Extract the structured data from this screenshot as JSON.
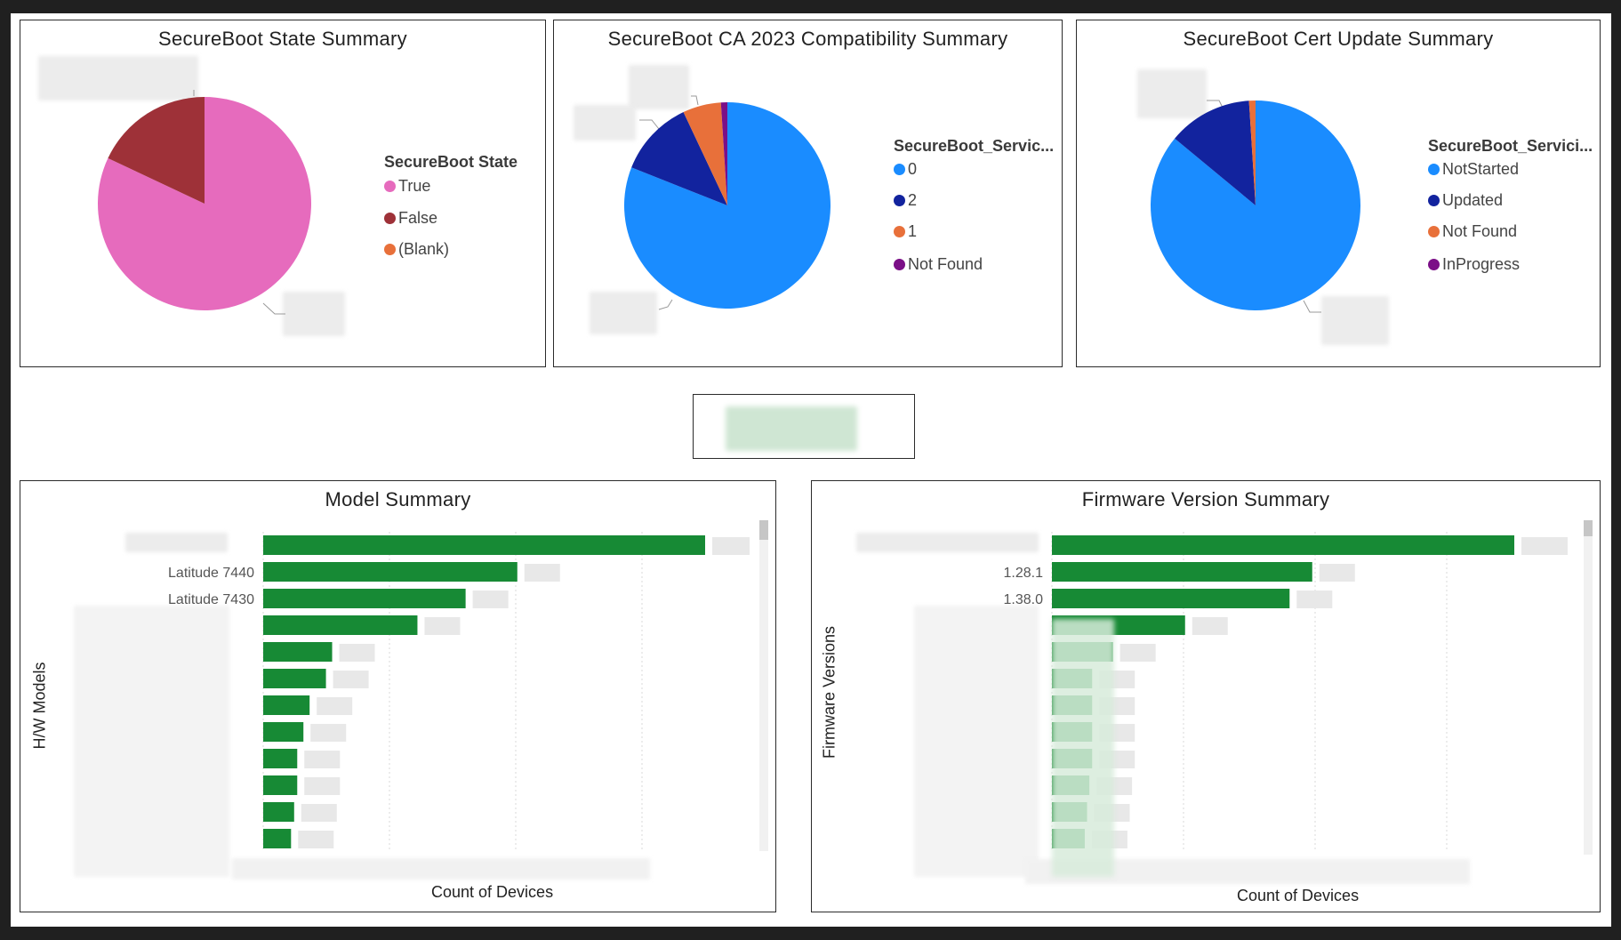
{
  "colors": {
    "pink": "#e66bbd",
    "darkred": "#9e3138",
    "orange": "#e8703a",
    "blue": "#1a8cff",
    "navy": "#12239e",
    "purple": "#7b0f87",
    "green": "#178a35"
  },
  "legend1": {
    "title": "SecureBoot State",
    "items": [
      "True",
      "False",
      "(Blank)"
    ]
  },
  "legend2": {
    "title": "SecureBoot_Servic...",
    "items": [
      "0",
      "2",
      "1",
      "Not Found"
    ]
  },
  "legend3": {
    "title": "SecureBoot_Servici...",
    "items": [
      "NotStarted",
      "Updated",
      "Not Found",
      "InProgress"
    ]
  },
  "bar_axes": {
    "model_ylabel": "H/W Models",
    "firmware_ylabel": "Firmware Versions",
    "model_xlabel": "Count of Devices",
    "firmware_xlabel": "Count of Devices"
  },
  "chart_data": [
    {
      "type": "pie",
      "title": "SecureBoot State Summary",
      "legend_title": "SecureBoot State",
      "legend_position": "right",
      "categories": [
        "True",
        "False",
        "(Blank)"
      ],
      "values": [
        82,
        18,
        0
      ],
      "colors": [
        "#e66bbd",
        "#9e3138",
        "#e8703a"
      ]
    },
    {
      "type": "pie",
      "title": "SecureBoot CA 2023 Compatibility Summary",
      "legend_title": "SecureBoot_Servic...",
      "legend_position": "right",
      "categories": [
        "0",
        "2",
        "1",
        "Not Found"
      ],
      "values": [
        81,
        12,
        6,
        1
      ],
      "colors": [
        "#1a8cff",
        "#12239e",
        "#e8703a",
        "#7b0f87"
      ]
    },
    {
      "type": "pie",
      "title": "SecureBoot Cert Update Summary",
      "legend_title": "SecureBoot_Servici...",
      "legend_position": "right",
      "categories": [
        "NotStarted",
        "Updated",
        "Not Found",
        "InProgress"
      ],
      "values": [
        86,
        13,
        1,
        0
      ],
      "colors": [
        "#1a8cff",
        "#12239e",
        "#e8703a",
        "#7b0f87"
      ]
    },
    {
      "type": "bar",
      "orientation": "horizontal",
      "title": "Model Summary",
      "xlabel": "Count of Devices",
      "ylabel": "H/W Models",
      "categories": [
        "",
        "Latitude 7440",
        "Latitude 7430",
        "",
        "",
        "",
        "",
        "",
        "",
        "",
        "",
        ""
      ],
      "values": [
        100,
        57.5,
        45.8,
        34.9,
        15.6,
        14.2,
        10.5,
        9.1,
        7.7,
        7.7,
        7.0,
        6.3
      ],
      "xlim": [
        0,
        100
      ],
      "grid": true,
      "color": "#178a35"
    },
    {
      "type": "bar",
      "orientation": "horizontal",
      "title": "Firmware Version Summary",
      "xlabel": "Count of Devices",
      "ylabel": "Firmware Versions",
      "categories": [
        "",
        "1.28.1",
        "1.38.0",
        "",
        "",
        "",
        "",
        "",
        "",
        "",
        "",
        ""
      ],
      "values": [
        100,
        56.3,
        51.4,
        28.8,
        13.2,
        8.7,
        8.7,
        8.7,
        8.7,
        8.1,
        7.6,
        7.1
      ],
      "xlim": [
        0,
        100
      ],
      "grid": true,
      "color": "#178a35"
    }
  ]
}
